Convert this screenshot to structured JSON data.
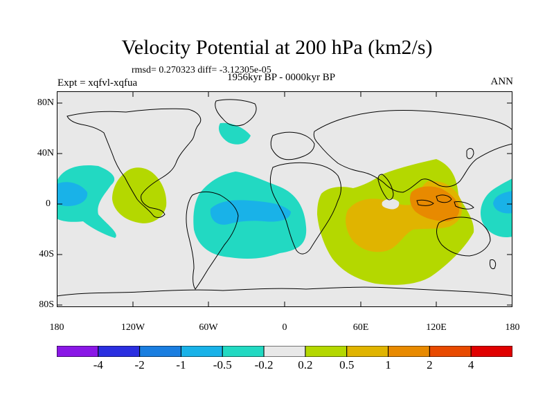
{
  "title": "Velocity Potential at 200 hPa (km2/s)",
  "stats": "rmsd= 0.270323  diff= -3.12305e-05",
  "experiment": "Expt = xqfvl-xqfua",
  "period": "1956kyr BP - 0000kyr BP",
  "season": "ANN",
  "lat_labels": [
    "80N",
    "40N",
    "0",
    "40S",
    "80S"
  ],
  "lon_labels": [
    "180",
    "120W",
    "60W",
    "0",
    "60E",
    "120E",
    "180"
  ],
  "colorbar": {
    "labels": [
      "-4",
      "-2",
      "-1",
      "-0.5",
      "-0.2",
      "0.2",
      "0.5",
      "1",
      "2",
      "4"
    ],
    "colors": [
      "#8a17e6",
      "#2b2fe0",
      "#1a7ee0",
      "#19b2e8",
      "#22d9c2",
      "#e8e8e8",
      "#b4d800",
      "#e0b400",
      "#e88a00",
      "#e84a00",
      "#e00000"
    ]
  },
  "map_colors": {
    "background": "#e8e8e8",
    "positive_light": "#b4d800",
    "positive_mid": "#e0b400",
    "positive_strong": "#e88a00",
    "negative_light": "#22d9c2",
    "negative_mid": "#19b2e8",
    "coast": "#000000"
  }
}
